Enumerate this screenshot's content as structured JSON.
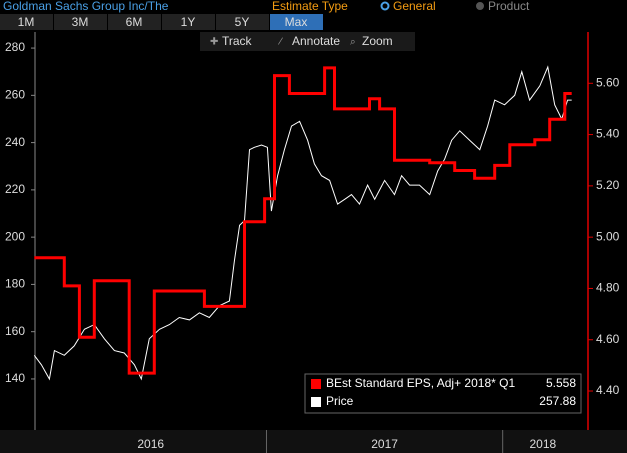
{
  "header": {
    "title": "Goldman Sachs Group Inc/The",
    "estimate_label": "Estimate Type",
    "options": [
      "General",
      "Product"
    ],
    "selected_option": 0
  },
  "tabs": [
    "1M",
    "3M",
    "6M",
    "1Y",
    "5Y",
    "Max"
  ],
  "active_tab": 5,
  "toolbar": [
    "Track",
    "Annotate",
    "Zoom"
  ],
  "chart_data": {
    "type": "line",
    "grid": false,
    "legend": "bottom-right",
    "xlim": [
      2016.02,
      2018.34
    ],
    "xticks": [
      2017,
      2018
    ],
    "year_labels": [
      2016,
      2017,
      2018
    ],
    "ylim": [
      118.4,
      286.8
    ],
    "yticks": [
      140,
      160,
      180,
      200,
      220,
      240,
      260,
      280
    ],
    "y2lim": [
      4.248,
      5.8
    ],
    "y2ticks": [
      {
        "value": 4.4,
        "label": "4.40"
      },
      {
        "value": 4.6,
        "label": "4.60"
      },
      {
        "value": 4.8,
        "label": "4.80"
      },
      {
        "value": 5.0,
        "label": "5.00"
      },
      {
        "value": 5.2,
        "label": "5.20"
      },
      {
        "value": 5.4,
        "label": "5.40"
      },
      {
        "value": 5.6,
        "label": "5.60"
      }
    ],
    "series": [
      {
        "name": "BEst Standard EPS, Adj+ 2018* Q1",
        "color": "#ff0000",
        "axis": "y2",
        "legend_value": 5.558,
        "x": [
          2016.017,
          2016.144,
          2016.144,
          2016.208,
          2016.208,
          2016.271,
          2016.271,
          2016.419,
          2016.419,
          2016.525,
          2016.525,
          2016.737,
          2016.737,
          2016.907,
          2016.907,
          2016.992,
          2016.992,
          2017.034,
          2017.034,
          2017.097,
          2017.097,
          2017.246,
          2017.246,
          2017.288,
          2017.288,
          2017.436,
          2017.436,
          2017.479,
          2017.479,
          2017.542,
          2017.542,
          2017.691,
          2017.691,
          2017.797,
          2017.797,
          2017.881,
          2017.881,
          2017.966,
          2017.966,
          2018.03,
          2018.03,
          2018.136,
          2018.136,
          2018.199,
          2018.199,
          2018.263,
          2018.263,
          2018.292
        ],
        "values": [
          4.92,
          4.92,
          4.81,
          4.81,
          4.61,
          4.61,
          4.83,
          4.83,
          4.47,
          4.47,
          4.79,
          4.79,
          4.73,
          4.73,
          5.06,
          5.06,
          5.15,
          5.15,
          5.63,
          5.63,
          5.56,
          5.56,
          5.66,
          5.66,
          5.5,
          5.5,
          5.54,
          5.54,
          5.5,
          5.5,
          5.3,
          5.3,
          5.29,
          5.29,
          5.26,
          5.26,
          5.23,
          5.23,
          5.28,
          5.28,
          5.36,
          5.36,
          5.38,
          5.38,
          5.46,
          5.46,
          5.56,
          5.56
        ]
      },
      {
        "name": "Price",
        "color": "#ffffff",
        "axis": "y",
        "legend_value": 257.88,
        "x": [
          2016.017,
          2016.047,
          2016.081,
          2016.102,
          2016.144,
          2016.186,
          2016.229,
          2016.271,
          2016.314,
          2016.356,
          2016.398,
          2016.441,
          2016.47,
          2016.504,
          2016.547,
          2016.589,
          2016.631,
          2016.674,
          2016.716,
          2016.758,
          2016.801,
          2016.843,
          2016.864,
          2016.886,
          2016.907,
          2016.928,
          2016.949,
          2016.979,
          2017.004,
          2017.021,
          2017.047,
          2017.076,
          2017.106,
          2017.14,
          2017.174,
          2017.203,
          2017.233,
          2017.267,
          2017.301,
          2017.331,
          2017.36,
          2017.394,
          2017.428,
          2017.458,
          2017.5,
          2017.542,
          2017.572,
          2017.606,
          2017.648,
          2017.691,
          2017.725,
          2017.754,
          2017.784,
          2017.818,
          2017.86,
          2017.903,
          2017.936,
          2017.966,
          2018.008,
          2018.051,
          2018.081,
          2018.114,
          2018.157,
          2018.191,
          2018.22,
          2018.25,
          2018.275,
          2018.292
        ],
        "values": [
          150,
          146,
          140,
          152,
          150,
          154,
          161,
          163,
          157,
          152,
          151,
          146,
          140,
          157,
          161,
          163,
          166,
          165,
          168,
          166,
          171,
          173,
          190,
          205,
          207,
          237,
          238,
          239,
          238,
          211,
          226,
          237,
          247,
          249,
          241,
          231,
          226,
          224,
          214,
          216,
          218,
          214,
          222,
          216,
          224,
          218,
          226,
          222,
          222,
          218,
          228,
          233,
          241,
          245,
          241,
          237,
          247,
          258,
          256,
          260,
          270,
          258,
          264,
          272,
          256,
          250,
          258,
          258
        ]
      }
    ]
  }
}
